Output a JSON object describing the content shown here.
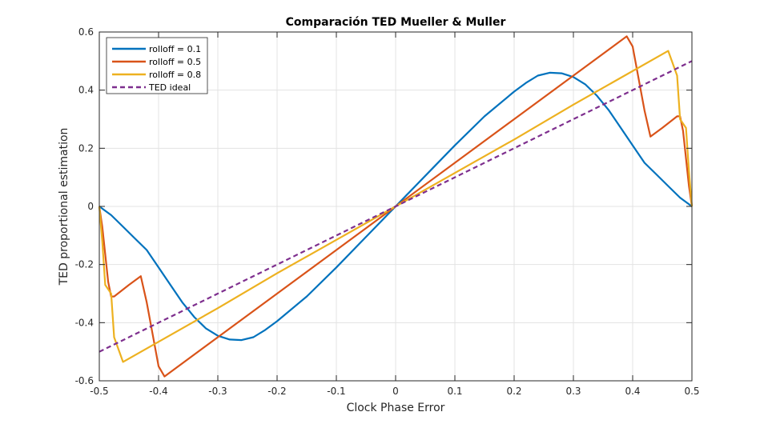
{
  "chart_data": {
    "type": "line",
    "title": "Comparación TED Mueller & Muller",
    "xlabel": "Clock Phase Error",
    "ylabel": "TED proportional estimation",
    "xlim": [
      -0.5,
      0.5
    ],
    "ylim": [
      -0.6,
      0.6
    ],
    "xticks": [
      -0.5,
      -0.4,
      -0.3,
      -0.2,
      -0.1,
      0,
      0.1,
      0.2,
      0.3,
      0.4,
      0.5
    ],
    "yticks": [
      -0.6,
      -0.4,
      -0.2,
      0,
      0.2,
      0.4,
      0.6
    ],
    "xtick_labels": [
      "-0.5",
      "-0.4",
      "-0.3",
      "-0.2",
      "-0.1",
      "0",
      "0.1",
      "0.2",
      "0.3",
      "0.4",
      "0.5"
    ],
    "ytick_labels": [
      "-0.6",
      "-0.4",
      "-0.2",
      "0",
      "0.2",
      "0.4",
      "0.6"
    ],
    "grid": true,
    "legend_position": "top-left",
    "series": [
      {
        "name": "rolloff = 0.1",
        "color": "#0072BD",
        "dash": "solid",
        "x": [
          -0.5,
          -0.48,
          -0.46,
          -0.44,
          -0.42,
          -0.4,
          -0.38,
          -0.36,
          -0.34,
          -0.32,
          -0.3,
          -0.28,
          -0.26,
          -0.24,
          -0.22,
          -0.2,
          -0.15,
          -0.1,
          -0.05,
          0,
          0.05,
          0.1,
          0.15,
          0.2,
          0.22,
          0.24,
          0.26,
          0.28,
          0.3,
          0.32,
          0.34,
          0.36,
          0.38,
          0.4,
          0.42,
          0.44,
          0.46,
          0.48,
          0.5
        ],
        "y": [
          0,
          -0.03,
          -0.07,
          -0.11,
          -0.15,
          -0.21,
          -0.27,
          -0.33,
          -0.38,
          -0.42,
          -0.445,
          -0.458,
          -0.46,
          -0.45,
          -0.425,
          -0.395,
          -0.31,
          -0.21,
          -0.105,
          0,
          0.105,
          0.21,
          0.31,
          0.395,
          0.425,
          0.45,
          0.46,
          0.458,
          0.445,
          0.42,
          0.38,
          0.33,
          0.27,
          0.21,
          0.15,
          0.11,
          0.07,
          0.03,
          0
        ]
      },
      {
        "name": "rolloff = 0.5",
        "color": "#D95319",
        "dash": "solid",
        "x": [
          -0.5,
          -0.495,
          -0.485,
          -0.48,
          -0.475,
          -0.45,
          -0.43,
          -0.42,
          -0.4,
          -0.39,
          -0.3,
          -0.2,
          -0.1,
          0,
          0.1,
          0.2,
          0.3,
          0.39,
          0.4,
          0.42,
          0.43,
          0.45,
          0.475,
          0.48,
          0.485,
          0.495,
          0.5
        ],
        "y": [
          0,
          -0.07,
          -0.26,
          -0.31,
          -0.31,
          -0.27,
          -0.24,
          -0.33,
          -0.55,
          -0.585,
          -0.45,
          -0.3,
          -0.15,
          0,
          0.15,
          0.3,
          0.45,
          0.585,
          0.55,
          0.33,
          0.24,
          0.27,
          0.31,
          0.31,
          0.26,
          0.07,
          0
        ]
      },
      {
        "name": "rolloff = 0.8",
        "color": "#EDB120",
        "dash": "solid",
        "x": [
          -0.5,
          -0.495,
          -0.49,
          -0.48,
          -0.475,
          -0.46,
          -0.3,
          -0.2,
          -0.1,
          0,
          0.1,
          0.2,
          0.3,
          0.46,
          0.475,
          0.48,
          0.49,
          0.495,
          0.5
        ],
        "y": [
          0,
          -0.12,
          -0.27,
          -0.3,
          -0.45,
          -0.535,
          -0.35,
          -0.23,
          -0.115,
          0,
          0.115,
          0.23,
          0.35,
          0.535,
          0.45,
          0.3,
          0.27,
          0.12,
          0
        ]
      },
      {
        "name": "TED ideal",
        "color": "#7E2F8E",
        "dash": "dashed",
        "x": [
          -0.5,
          0.5
        ],
        "y": [
          -0.5,
          0.5
        ]
      }
    ]
  }
}
